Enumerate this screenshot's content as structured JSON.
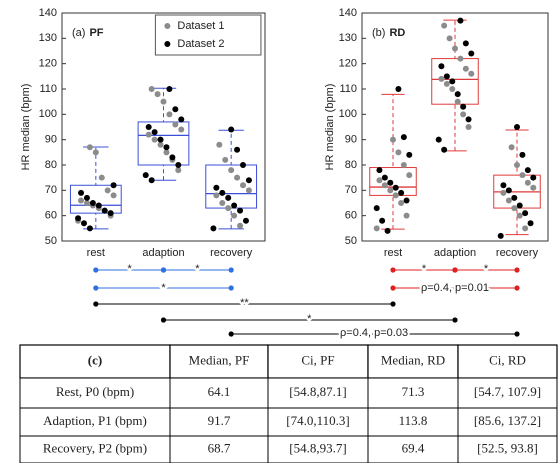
{
  "chart_data": [
    {
      "type": "box",
      "panel_label": "(a)",
      "panel_name": "PF",
      "ylabel": "HR median (bpm)",
      "categories": [
        "rest",
        "adaption",
        "recovery"
      ],
      "color": "#3b4fd8",
      "ylim": [
        50,
        140
      ],
      "yticks": [
        50,
        60,
        70,
        80,
        90,
        100,
        110,
        120,
        130,
        140
      ],
      "boxes": [
        {
          "whislo": 54.8,
          "q1": 61,
          "med": 64.1,
          "q3": 72,
          "whishi": 87.1
        },
        {
          "whislo": 74.0,
          "q1": 80,
          "med": 91.7,
          "q3": 97,
          "whishi": 110.3
        },
        {
          "whislo": 54.8,
          "q1": 63,
          "med": 68.7,
          "q3": 80,
          "whishi": 93.7
        }
      ],
      "legend": "upper right",
      "series": [
        {
          "name": "Dataset 1",
          "color": "#8c8c8c",
          "values": [
            [
              58,
              60,
              62,
              63,
              64,
              65,
              66,
              68,
              70,
              75,
              85,
              87
            ],
            [
              78,
              82,
              85,
              88,
              90,
              92,
              94,
              96,
              100,
              105,
              108,
              110
            ],
            [
              56,
              60,
              63,
              65,
              68,
              70,
              72,
              75,
              78,
              82,
              88
            ]
          ]
        },
        {
          "name": "Dataset 2",
          "color": "#000000",
          "values": [
            [
              55,
              57,
              59,
              61,
              62,
              64,
              65,
              67,
              69,
              72
            ],
            [
              74,
              76,
              80,
              83,
              87,
              90,
              93,
              95,
              98,
              102,
              110
            ],
            [
              55,
              58,
              62,
              64,
              67,
              69,
              71,
              74,
              80,
              86,
              94
            ]
          ]
        }
      ],
      "sig_color": "#2f6fe0",
      "significance": [
        "*",
        "*",
        "*"
      ]
    },
    {
      "type": "box",
      "panel_label": "(b)",
      "panel_name": "RD",
      "ylabel": "HR median (bpm)",
      "categories": [
        "rest",
        "adaption",
        "recovery"
      ],
      "color": "#e03a3a",
      "ylim": [
        50,
        140
      ],
      "yticks": [
        50,
        60,
        70,
        80,
        90,
        100,
        110,
        120,
        130,
        140
      ],
      "boxes": [
        {
          "whislo": 54.7,
          "q1": 68,
          "med": 71.3,
          "q3": 79,
          "whishi": 107.9
        },
        {
          "whislo": 85.6,
          "q1": 104,
          "med": 113.8,
          "q3": 122,
          "whishi": 137.2
        },
        {
          "whislo": 52.5,
          "q1": 63,
          "med": 69.4,
          "q3": 76,
          "whishi": 93.8
        }
      ],
      "series": [
        {
          "color": "#8c8c8c",
          "values": [
            [
              55,
              60,
              65,
              68,
              70,
              72,
              74,
              76,
              80,
              85,
              90
            ],
            [
              95,
              100,
              105,
              110,
              112,
              114,
              116,
              118,
              122,
              126,
              130,
              135
            ],
            [
              55,
              60,
              63,
              66,
              69,
              71,
              73,
              76,
              80,
              87
            ]
          ]
        },
        {
          "color": "#000000",
          "values": [
            [
              54,
              58,
              63,
              66,
              69,
              71,
              73,
              75,
              78,
              84,
              91,
              110
            ],
            [
              86,
              90,
              98,
              103,
              108,
              113,
              115,
              119,
              124,
              128,
              137
            ],
            [
              52,
              57,
              61,
              64,
              67,
              70,
              72,
              75,
              78,
              84,
              95
            ]
          ]
        }
      ],
      "sig_color": "#e02020",
      "significance": [
        "*",
        "*",
        "ρ=0.4, p=0.01"
      ]
    }
  ],
  "cross_significance": [
    "**",
    "*",
    "ρ=0.4, p=0.03"
  ],
  "table": {
    "header": [
      "(c)",
      "Median, PF",
      "Ci, PF",
      "Median, RD",
      "Ci, RD"
    ],
    "rows": [
      [
        "Rest, P0 (bpm)",
        "64.1",
        "[54.8,87.1]",
        "71.3",
        "[54.7, 107.9]"
      ],
      [
        "Adaption, P1 (bpm)",
        "91.7",
        "[74.0,110.3]",
        "113.8",
        "[85.6, 137.2]"
      ],
      [
        "Recovery, P2 (bpm)",
        "68.7",
        "[54.8,93.7]",
        "69.4",
        "[52.5, 93.8]"
      ]
    ]
  }
}
